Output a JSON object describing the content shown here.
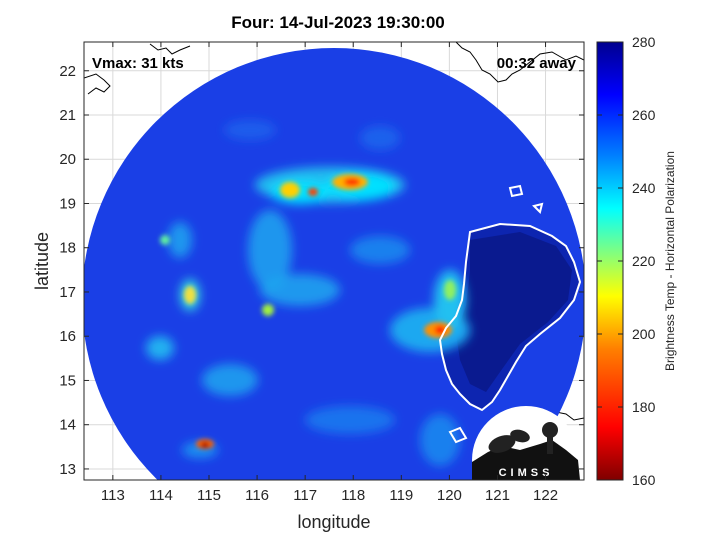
{
  "title": "Four: 14-Jul-2023 19:30:00",
  "annotations": {
    "vmax": "Vmax: 31 kts",
    "time_away": "00:32 away"
  },
  "axes": {
    "xlabel": "longitude",
    "ylabel": "latitude",
    "x_ticks": [
      "113",
      "114",
      "115",
      "116",
      "117",
      "118",
      "119",
      "120",
      "121",
      "122"
    ],
    "y_ticks": [
      "13",
      "14",
      "15",
      "16",
      "17",
      "18",
      "19",
      "20",
      "21",
      "22"
    ],
    "xlim": [
      112.4,
      122.8
    ],
    "ylim": [
      12.75,
      22.65
    ]
  },
  "colorbar": {
    "label": "Brightness Temp - Horizontal Polarization",
    "ticks": [
      "280",
      "260",
      "240",
      "220",
      "200",
      "180",
      "160"
    ],
    "range": [
      160,
      280
    ],
    "colors": [
      "#7f0000",
      "#ff0000",
      "#ff8000",
      "#ffff00",
      "#80ff80",
      "#00ffff",
      "#0080ff",
      "#0000ff",
      "#00008f"
    ]
  },
  "logo": {
    "text": "CIMSS"
  },
  "colors": {
    "background_swath": "#1a3fe6",
    "land": "#0a1a8f",
    "coastline": "#ffffff"
  }
}
